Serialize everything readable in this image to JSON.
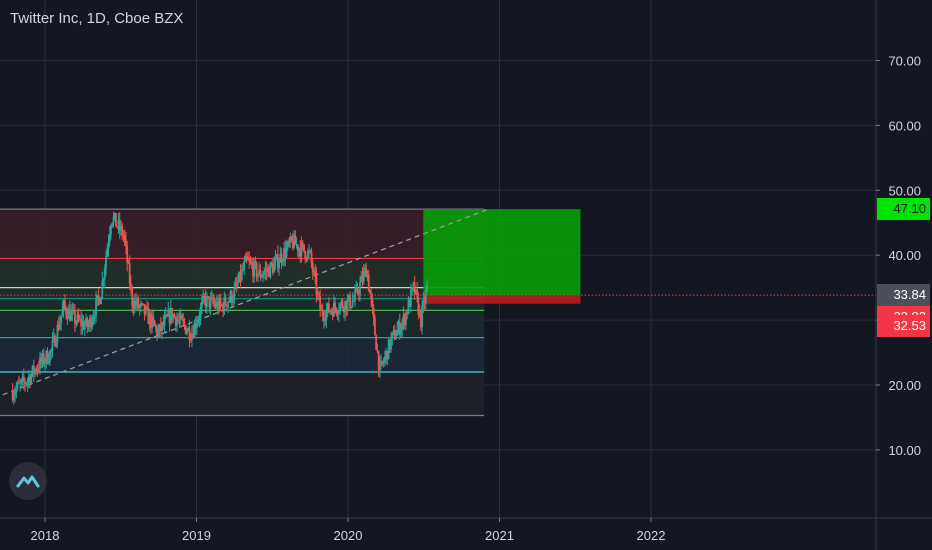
{
  "header": {
    "title": "Twitter Inc, 1D, Cboe BZX"
  },
  "price_tags": [
    {
      "value": "47.10",
      "color": "#00e400",
      "text_color": "#131722"
    },
    {
      "value": "33.84",
      "color": "#4b4f5a",
      "text_color": "#ffffff"
    },
    {
      "value": "33.82",
      "color": "#f23645",
      "text_color": "#ffffff"
    },
    {
      "value": "32.53",
      "color": "#f23645",
      "text_color": "#ffffff"
    }
  ],
  "chart_data": {
    "type": "candlestick",
    "title": "Twitter Inc, 1D, Cboe BZX",
    "x_ticks": [
      "2018",
      "2019",
      "2020",
      "2021",
      "2022"
    ],
    "y_ticks": [
      "10.00",
      "20.00",
      "30.00",
      "40.00",
      "50.00",
      "60.00",
      "70.00"
    ],
    "ylim": [
      2,
      80
    ],
    "grid": true,
    "price_series": [
      {
        "date": "2017-10-15",
        "price": 19
      },
      {
        "date": "2017-11-15",
        "price": 20.5
      },
      {
        "date": "2017-12-15",
        "price": 23
      },
      {
        "date": "2018-01-15",
        "price": 25
      },
      {
        "date": "2018-02-15",
        "price": 32
      },
      {
        "date": "2018-03-15",
        "price": 30
      },
      {
        "date": "2018-04-15",
        "price": 29
      },
      {
        "date": "2018-05-15",
        "price": 34
      },
      {
        "date": "2018-06-10",
        "price": 46
      },
      {
        "date": "2018-07-10",
        "price": 43
      },
      {
        "date": "2018-07-30",
        "price": 33
      },
      {
        "date": "2018-09-01",
        "price": 31
      },
      {
        "date": "2018-10-01",
        "price": 28
      },
      {
        "date": "2018-11-01",
        "price": 31
      },
      {
        "date": "2018-12-20",
        "price": 28
      },
      {
        "date": "2019-01-20",
        "price": 33
      },
      {
        "date": "2019-03-01",
        "price": 32
      },
      {
        "date": "2019-04-01",
        "price": 34
      },
      {
        "date": "2019-05-01",
        "price": 39
      },
      {
        "date": "2019-06-01",
        "price": 37
      },
      {
        "date": "2019-07-01",
        "price": 38
      },
      {
        "date": "2019-08-20",
        "price": 42
      },
      {
        "date": "2019-10-01",
        "price": 40
      },
      {
        "date": "2019-10-28",
        "price": 31
      },
      {
        "date": "2019-12-01",
        "price": 32
      },
      {
        "date": "2020-01-15",
        "price": 33
      },
      {
        "date": "2020-02-15",
        "price": 38
      },
      {
        "date": "2020-03-18",
        "price": 22
      },
      {
        "date": "2020-04-15",
        "price": 27
      },
      {
        "date": "2020-05-15",
        "price": 30
      },
      {
        "date": "2020-06-08",
        "price": 35
      },
      {
        "date": "2020-06-25",
        "price": 30
      },
      {
        "date": "2020-07-10",
        "price": 35
      }
    ],
    "horizontal_levels": [
      {
        "price": 47.1,
        "color": "#787b86"
      },
      {
        "price": 39.5,
        "color": "#f23645"
      },
      {
        "price": 35.0,
        "color": "#d1d4a0"
      },
      {
        "price": 33.3,
        "color": "#089981"
      },
      {
        "price": 31.5,
        "color": "#4caf50"
      },
      {
        "price": 27.3,
        "color": "#26a69a"
      },
      {
        "price": 22.0,
        "color": "#4dd0e1"
      },
      {
        "price": 15.3,
        "color": "#787b86"
      }
    ],
    "trendline": {
      "from_date": "2017-09-01",
      "from_price": 18,
      "to_date": "2020-12-01",
      "to_price": 47
    },
    "position": {
      "start_date": "2020-07-01",
      "end_date": "2021-07-15",
      "entry": 33.84,
      "target": 47.1,
      "stop": 32.53
    },
    "last_price": 33.84
  }
}
